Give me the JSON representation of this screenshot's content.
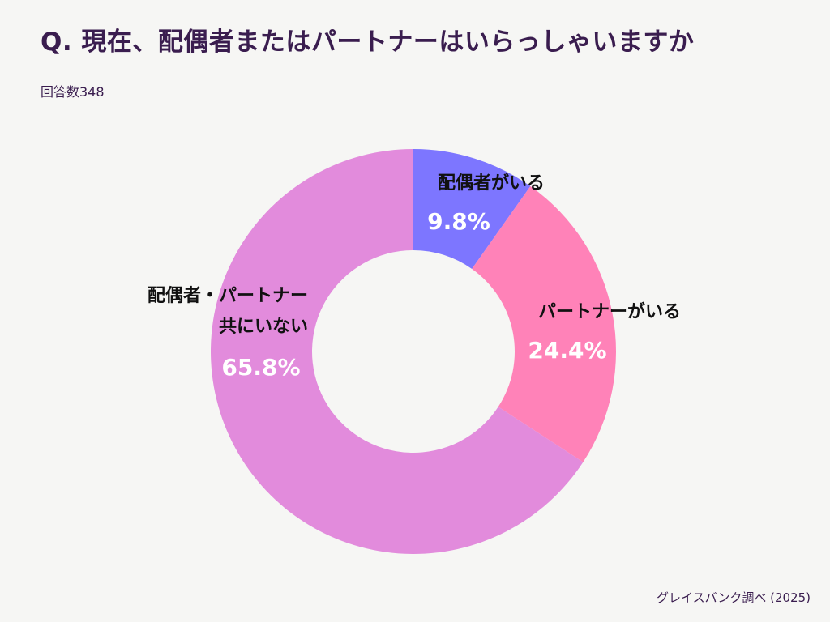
{
  "header": {
    "title": "Q. 現在、配偶者またはパートナーはいらっしゃいますか",
    "respondents": "回答数348"
  },
  "footer": {
    "source": "グレイスバンク調べ (2025)"
  },
  "chart_data": {
    "type": "pie",
    "style": "donut",
    "title": "Q. 現在、配偶者またはパートナーはいらっしゃいますか",
    "subtitle": "回答数348",
    "slices": [
      {
        "label_lines": [
          "配偶者がいる"
        ],
        "value": 9.8,
        "value_label": "9.8%",
        "color": "#7d76ff"
      },
      {
        "label_lines": [
          "パートナーがいる"
        ],
        "value": 24.4,
        "value_label": "24.4%",
        "color": "#ff82b8"
      },
      {
        "label_lines": [
          "配偶者・パートナー",
          "共にいない"
        ],
        "value": 65.8,
        "value_label": "65.8%",
        "color": "#e28bdc"
      }
    ]
  }
}
